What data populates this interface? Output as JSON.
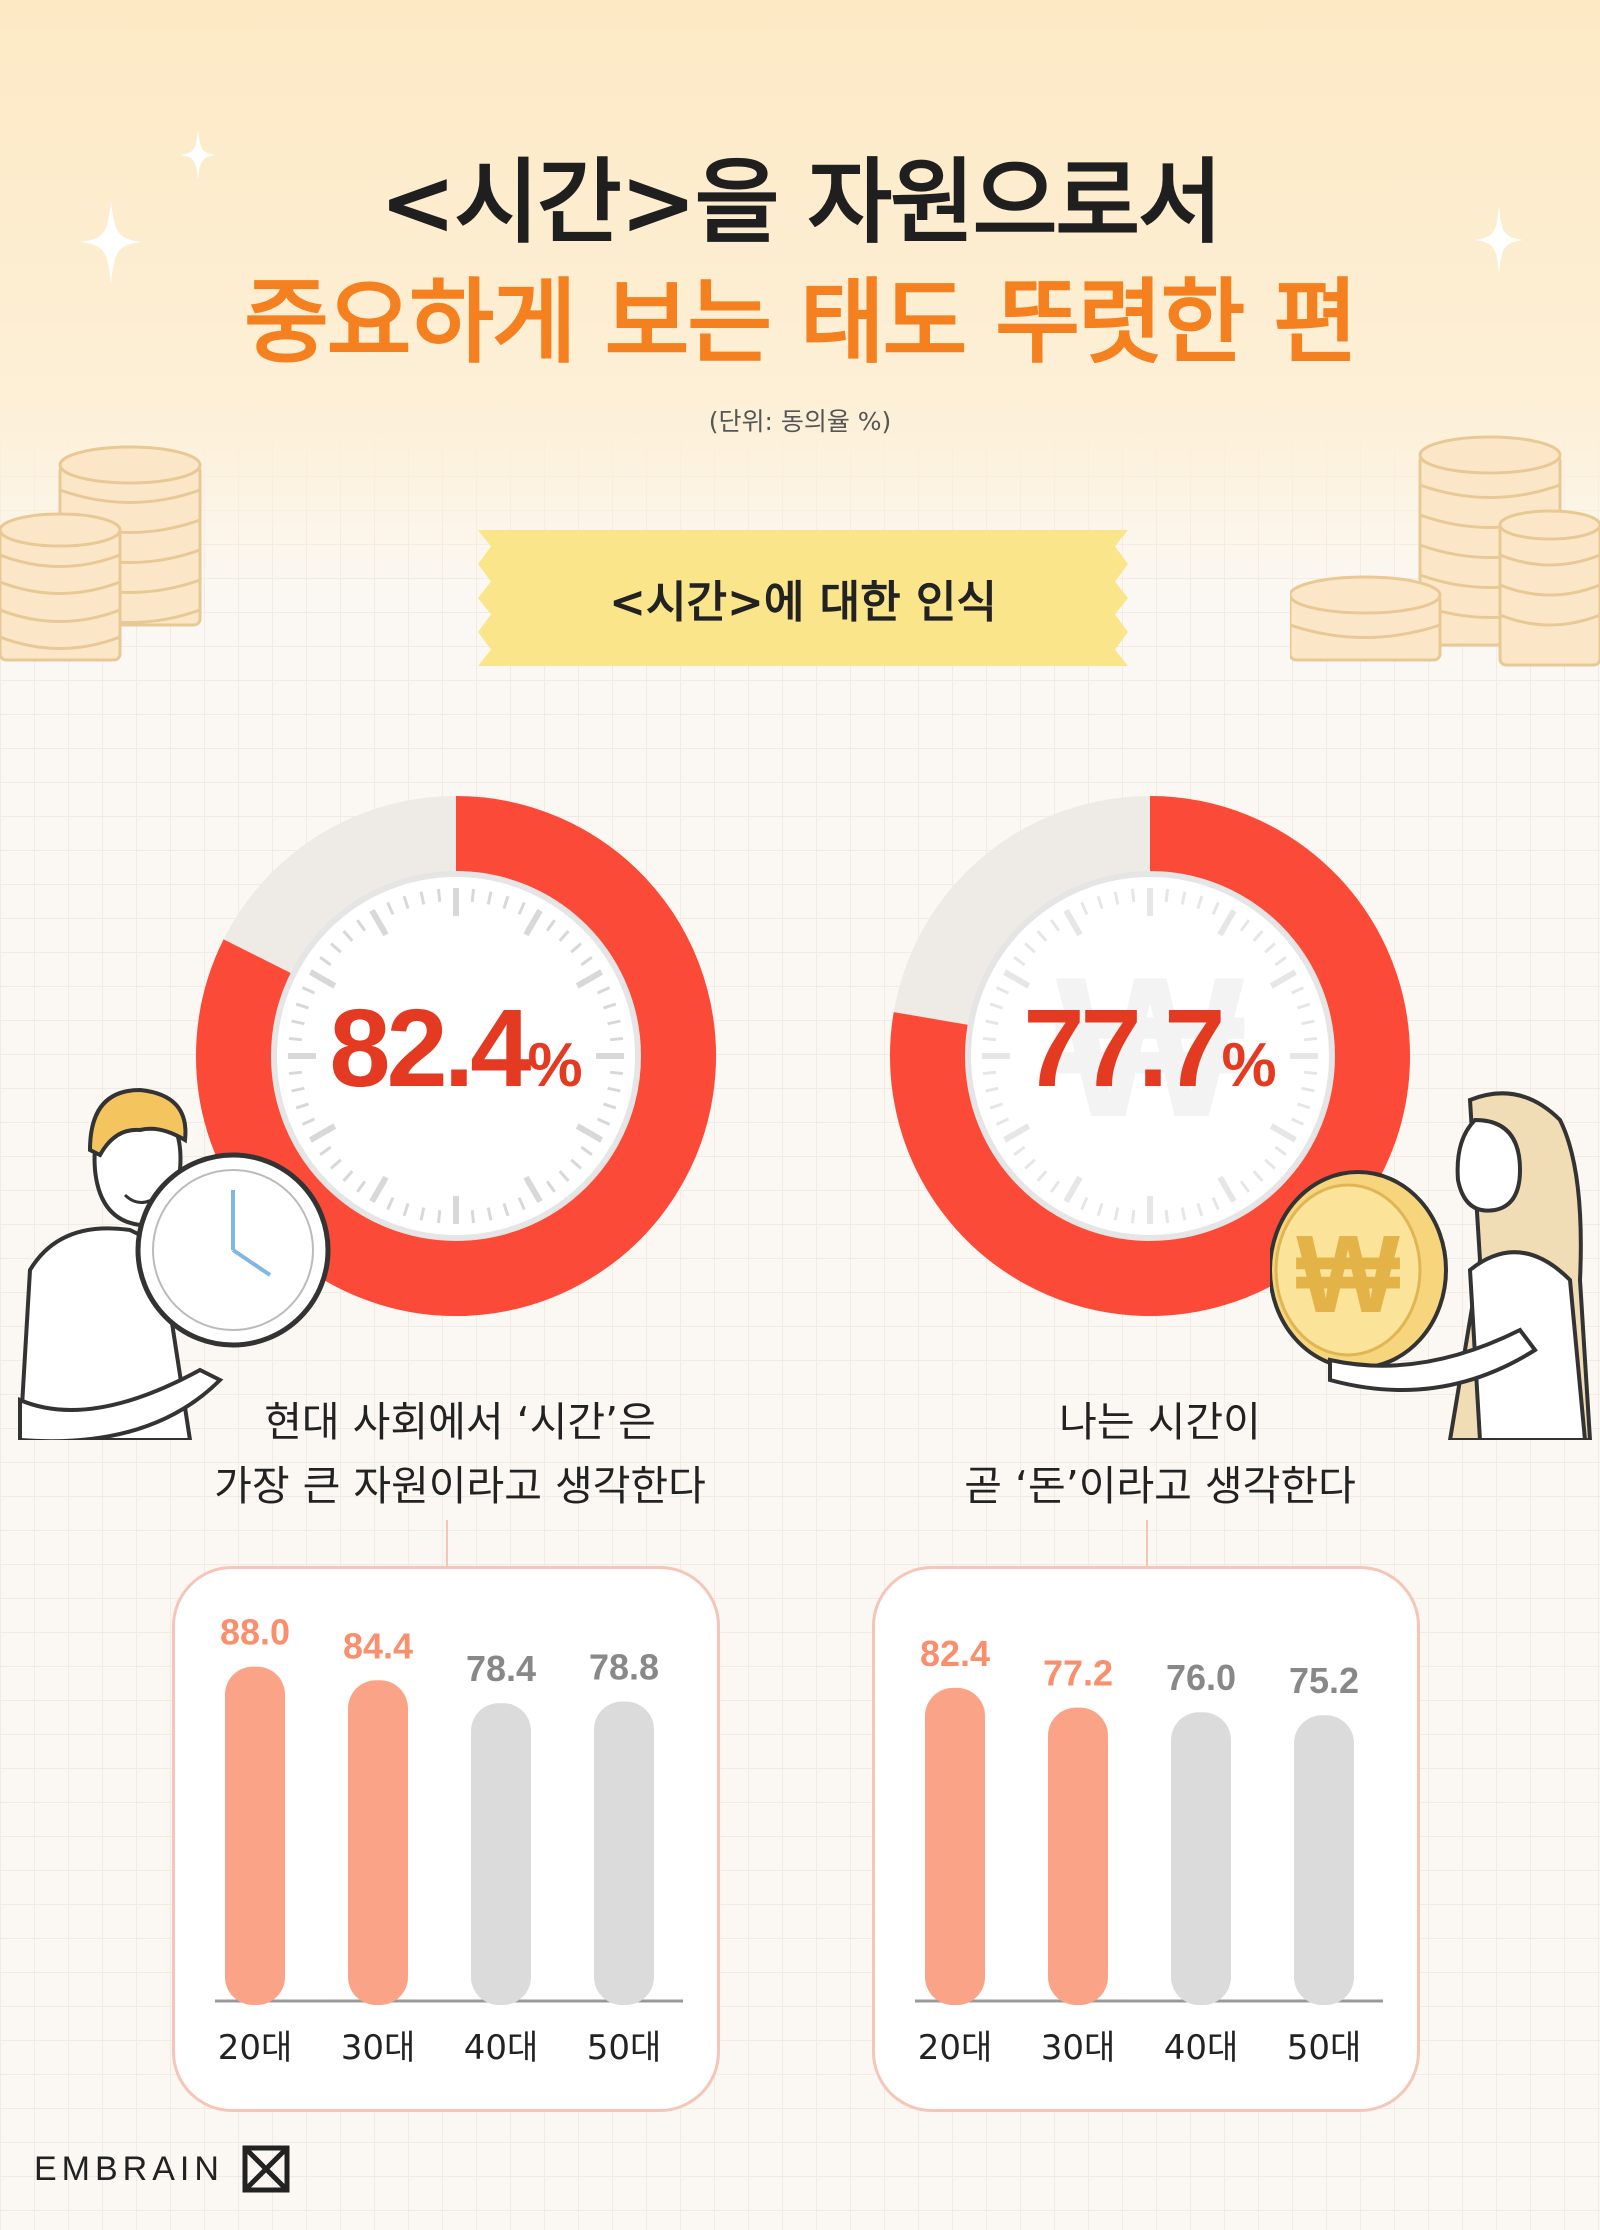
{
  "title": {
    "line1": "<시간>을 자원으로서",
    "line2": "중요하게 보는 태도 뚜렷한 편"
  },
  "unit_note": "(단위: 동의율 %)",
  "section_label": "<시간>에 대한 인식",
  "colors": {
    "accent_orange": "#f4801f",
    "donut_red": "#fb4a38",
    "bar_highlight": "#fba386",
    "bar_gray": "#dcdbdb",
    "value_highlight": "#f98f6c",
    "value_gray": "#888888"
  },
  "charts": {
    "left": {
      "percent_value": "82.4",
      "percent_symbol": "%",
      "caption_line1": "현대 사회에서 ‘시간’은",
      "caption_line2": "가장 큰 자원이라고 생각한다"
    },
    "right": {
      "percent_value": "77.7",
      "percent_symbol": "%",
      "caption_line1": "나는 시간이",
      "caption_line2": "곧 ‘돈’이라고 생각한다"
    }
  },
  "chart_data": [
    {
      "type": "pie",
      "values": [
        82.4,
        17.6
      ],
      "center_label": "82.4%",
      "caption": "현대 사회에서 ‘시간’은 가장 큰 자원이라고 생각한다"
    },
    {
      "type": "pie",
      "values": [
        77.7,
        22.3
      ],
      "center_label": "77.7%",
      "caption": "나는 시간이 곧 ‘돈’이라고 생각한다"
    },
    {
      "type": "bar",
      "categories": [
        "20대",
        "30대",
        "40대",
        "50대"
      ],
      "values": [
        88.0,
        84.4,
        78.4,
        78.8
      ],
      "value_labels": [
        "88.0",
        "84.4",
        "78.4",
        "78.8"
      ],
      "highlight": [
        true,
        true,
        false,
        false
      ],
      "ylim": [
        0,
        100
      ]
    },
    {
      "type": "bar",
      "categories": [
        "20대",
        "30대",
        "40대",
        "50대"
      ],
      "values": [
        82.4,
        77.2,
        76.0,
        75.2
      ],
      "value_labels": [
        "82.4",
        "77.2",
        "76.0",
        "75.2"
      ],
      "highlight": [
        true,
        true,
        false,
        false
      ],
      "ylim": [
        0,
        100
      ]
    }
  ],
  "icons": [
    "sparkle-icon",
    "coin-stack-icon",
    "clock-icon",
    "won-coin-icon",
    "person-man-icon",
    "person-woman-icon",
    "embrain-logo-icon"
  ],
  "logo_text": "EMBRAIN"
}
